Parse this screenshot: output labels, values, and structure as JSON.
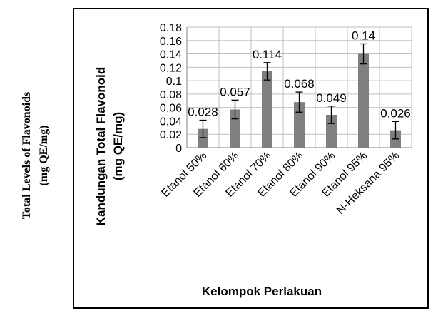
{
  "outer_label": {
    "line1": "Total Levels of Flavonoids",
    "line2": "(mg QE/mg)"
  },
  "chart_data": {
    "type": "bar",
    "categories": [
      "Etanol 50%",
      "Etanol 60%",
      "Etanol 70%",
      "Etanol 80%",
      "Etanol 90%",
      "Etanol 95%",
      "N-Heksana 95%"
    ],
    "values": [
      0.028,
      0.057,
      0.114,
      0.068,
      0.049,
      0.14,
      0.026
    ],
    "value_labels": [
      "0.028",
      "0.057",
      "0.114",
      "0.068",
      "0.049",
      "0.14",
      "0.026"
    ],
    "error": [
      0.013,
      0.014,
      0.013,
      0.015,
      0.013,
      0.015,
      0.013
    ],
    "ylim": [
      0,
      0.18
    ],
    "yticks": [
      "0",
      "0.02",
      "0.04",
      "0.06",
      "0.08",
      "0.1",
      "0.12",
      "0.14",
      "0.16",
      "0.18"
    ],
    "ylabel_line1": "Kandungan Total Flavonoid",
    "ylabel_line2": "(mg QE/mg)",
    "xlabel": "Kelompok Perlakuan",
    "grid": true,
    "bar_color": "#7f7f7f"
  }
}
